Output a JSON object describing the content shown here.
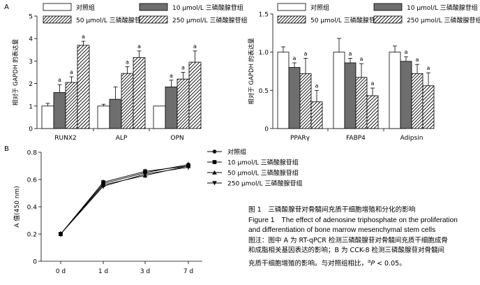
{
  "panel_labels": {
    "a": "A",
    "b": "B"
  },
  "legend_items": [
    "对照组",
    "10 μmol/L 三磷酸腺苷组",
    "50 μmol/L 三磷酸腺苷组",
    "250 μmol/L 三磷酸腺苷组"
  ],
  "line_legend_items": [
    "对照组",
    "10 μmol/L 三磷酸腺苷组",
    "50 μmol/L 三磷酸腺苷组",
    "250 μmol/L 三磷酸腺苷组"
  ],
  "significance_mark": "a",
  "colors": {
    "bar_edge": "#000000",
    "dark_fill": "#6e6e6e",
    "background": "#ffffff"
  },
  "chart_data": [
    {
      "type": "bar",
      "ylabel": "相对于 GAPDH 的表达量",
      "ylim": [
        0,
        5
      ],
      "yticks": [
        "0",
        "1",
        "2",
        "3",
        "4",
        "5"
      ],
      "categories": [
        "RUNX2",
        "ALP",
        "OPN"
      ],
      "series": [
        {
          "name": "对照组",
          "values": [
            1.0,
            1.0,
            1.0
          ],
          "errors": [
            0.12,
            0.08,
            0.0
          ],
          "sig": [
            false,
            false,
            false
          ]
        },
        {
          "name": "10 μmol/L 三磷酸腺苷组",
          "values": [
            1.6,
            1.3,
            1.85
          ],
          "errors": [
            0.35,
            0.55,
            0.3
          ],
          "sig": [
            true,
            false,
            true
          ]
        },
        {
          "name": "50 μmol/L 三磷酸腺苷组",
          "values": [
            2.05,
            2.45,
            2.2
          ],
          "errors": [
            0.25,
            0.3,
            0.3
          ],
          "sig": [
            true,
            true,
            true
          ]
        },
        {
          "name": "250 μmol/L 三磷酸腺苷组",
          "values": [
            3.7,
            3.15,
            2.95
          ],
          "errors": [
            0.18,
            0.3,
            0.5
          ],
          "sig": [
            true,
            true,
            true
          ]
        }
      ]
    },
    {
      "type": "bar",
      "ylabel": "相对于 GAPDH 的表达量",
      "ylim": [
        0,
        1.5
      ],
      "yticks": [
        "0",
        "0.5",
        "1.0",
        "1.5"
      ],
      "categories": [
        "PPARγ",
        "FABP4",
        "Adipsin"
      ],
      "series": [
        {
          "name": "对照组",
          "values": [
            1.0,
            1.0,
            1.0
          ],
          "errors": [
            0.07,
            0.18,
            0.08
          ],
          "sig": [
            false,
            false,
            false
          ]
        },
        {
          "name": "10 μmol/L 三磷酸腺苷组",
          "values": [
            0.8,
            0.86,
            0.88
          ],
          "errors": [
            0.06,
            0.06,
            0.06
          ],
          "sig": [
            true,
            true,
            true
          ]
        },
        {
          "name": "50 μmol/L 三磷酸腺苷组",
          "values": [
            0.72,
            0.67,
            0.72
          ],
          "errors": [
            0.2,
            0.18,
            0.12
          ],
          "sig": [
            true,
            true,
            true
          ]
        },
        {
          "name": "250 μmol/L 三磷酸腺苷组",
          "values": [
            0.35,
            0.43,
            0.56
          ],
          "errors": [
            0.15,
            0.1,
            0.17
          ],
          "sig": [
            true,
            true,
            true
          ]
        }
      ]
    },
    {
      "type": "line",
      "ylabel": "A 值(450 nm)",
      "ylim": [
        0,
        0.8
      ],
      "yticks": [
        "0",
        "0.2",
        "0.4",
        "0.6",
        "0.8"
      ],
      "categories": [
        "0 d",
        "1 d",
        "3 d",
        "7 d"
      ],
      "series": [
        {
          "name": "对照组",
          "marker": "circle",
          "values": [
            0.2,
            0.57,
            0.65,
            0.71
          ]
        },
        {
          "name": "10 μmol/L 三磷酸腺苷组",
          "marker": "square",
          "values": [
            0.2,
            0.58,
            0.66,
            0.7
          ]
        },
        {
          "name": "50 μmol/L 三磷酸腺苷组",
          "marker": "triangle-up",
          "values": [
            0.2,
            0.56,
            0.63,
            0.7
          ]
        },
        {
          "name": "250 μmol/L 三磷酸腺苷组",
          "marker": "triangle-down",
          "values": [
            0.2,
            0.55,
            0.64,
            0.69
          ]
        }
      ]
    }
  ],
  "caption": {
    "title": "图 1　三磷酸腺苷对骨髓间充质干细胞增殖和分化的影响",
    "en_line1": "Figure 1　The effect of adenosine triphosphate on the proliferation",
    "en_line2": "and differentiation of bone marrow mesenchymal stem cells",
    "note_line1": "图注：图中 A 为 RT-qPCR 检测三磷酸腺苷对骨髓间充质干细胞成骨",
    "note_line2": "和成脂相关基因表达的影响；B 为 CCK-8 检测三磷酸腺苷对骨髓间",
    "note_line3_prefix": "充质干细胞增殖的影响。与对照组相比，",
    "note_sup": "a",
    "note_italic": "P",
    "note_line3_suffix": " < 0.05。"
  }
}
